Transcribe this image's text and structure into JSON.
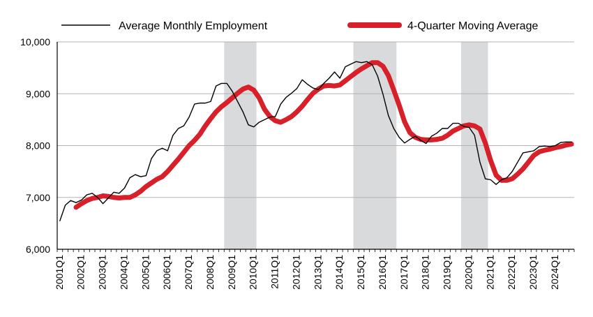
{
  "chart_data": {
    "type": "line",
    "title": "",
    "xlabel": "",
    "ylabel": "",
    "ylim": [
      6000,
      10000
    ],
    "yticks": [
      6000,
      7000,
      8000,
      9000,
      10000
    ],
    "ytick_labels": [
      "6,000",
      "7,000",
      "8,000",
      "9,000",
      "10,000"
    ],
    "grid": "horizontal",
    "legend": "top",
    "year_labels": [
      "2001Q1",
      "2002Q1",
      "2003Q1",
      "2004Q1",
      "2005Q1",
      "2006Q1",
      "2007Q1",
      "2008Q1",
      "2009Q1",
      "2010Q1",
      "2011Q1",
      "2012Q1",
      "2013Q1",
      "2014Q1",
      "2015Q1",
      "2016Q1",
      "2017Q1",
      "2018Q1",
      "2019Q1",
      "2020Q1",
      "2021Q1",
      "2022Q1",
      "2023Q1",
      "2024Q1"
    ],
    "quarters_total": 96,
    "shaded_periods": [
      {
        "start": "2008Q4",
        "end": "2010Q1"
      },
      {
        "start": "2014Q4",
        "end": "2016Q3"
      },
      {
        "start": "2019Q4",
        "end": "2020Q4"
      }
    ],
    "series": [
      {
        "name": "Average Monthly Employment",
        "color": "#000000",
        "style": "thin",
        "start": "2001Q1",
        "values": [
          6550,
          6850,
          6940,
          6900,
          6950,
          7050,
          7080,
          7000,
          6880,
          6990,
          7100,
          7080,
          7180,
          7380,
          7440,
          7400,
          7420,
          7750,
          7900,
          7950,
          7900,
          8200,
          8330,
          8380,
          8550,
          8800,
          8820,
          8820,
          8850,
          9150,
          9200,
          9200,
          9050,
          8850,
          8650,
          8400,
          8360,
          8450,
          8500,
          8550,
          8560,
          8800,
          8930,
          9010,
          9100,
          9270,
          9180,
          9110,
          9080,
          9200,
          9300,
          9420,
          9300,
          9520,
          9570,
          9620,
          9600,
          9620,
          9560,
          9340,
          8990,
          8580,
          8330,
          8160,
          8050,
          8120,
          8180,
          8100,
          8040,
          8180,
          8240,
          8330,
          8330,
          8430,
          8430,
          8370,
          8350,
          8200,
          7680,
          7360,
          7340,
          7250,
          7340,
          7380,
          7500,
          7680,
          7860,
          7880,
          7900,
          7980,
          7990,
          7980,
          8000,
          8060,
          8070,
          8070
        ],
        "note": ""
      },
      {
        "name": "4-Quarter Moving Average",
        "color": "#d7202a",
        "style": "thick",
        "start": "2001Q4",
        "values": [
          6810,
          6880,
          6940,
          6980,
          7000,
          7030,
          7020,
          7000,
          6990,
          7000,
          7000,
          7050,
          7120,
          7210,
          7280,
          7350,
          7400,
          7500,
          7620,
          7740,
          7870,
          8000,
          8100,
          8220,
          8380,
          8520,
          8650,
          8750,
          8830,
          8920,
          9010,
          9090,
          9130,
          9070,
          8920,
          8700,
          8560,
          8480,
          8450,
          8500,
          8560,
          8650,
          8760,
          8890,
          9010,
          9090,
          9150,
          9160,
          9150,
          9170,
          9250,
          9330,
          9410,
          9480,
          9540,
          9600,
          9600,
          9530,
          9350,
          9070,
          8780,
          8460,
          8250,
          8160,
          8120,
          8110,
          8110,
          8120,
          8140,
          8200,
          8280,
          8330,
          8380,
          8400,
          8380,
          8320,
          8050,
          7710,
          7430,
          7330,
          7330,
          7360,
          7450,
          7550,
          7680,
          7810,
          7880,
          7910,
          7930,
          7960,
          7980,
          8010,
          8030
        ]
      }
    ]
  },
  "legend": {
    "items": [
      {
        "label": "Average Monthly Employment",
        "color": "#000000"
      },
      {
        "label": "4-Quarter Moving Average",
        "color": "#d7202a"
      }
    ]
  }
}
